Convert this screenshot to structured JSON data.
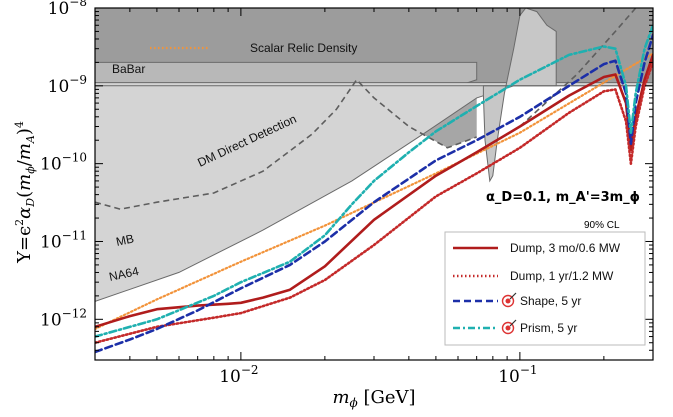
{
  "chart_data": {
    "type": "line",
    "xscale": "log",
    "yscale": "log",
    "xlim": [
      0.003,
      0.3
    ],
    "ylim": [
      3e-13,
      1e-08
    ],
    "xlabel": "m_ϕ [GeV]",
    "ylabel": "Y=ϵ²α_D(m_ϕ/m_A')⁴",
    "x_ticks": [
      {
        "value": 0.01,
        "base": "10",
        "exp": "−2"
      },
      {
        "value": 0.1,
        "base": "10",
        "exp": "−1"
      }
    ],
    "y_ticks": [
      {
        "value": 1e-12,
        "base": "10",
        "exp": "−12"
      },
      {
        "value": 1e-11,
        "base": "10",
        "exp": "−11"
      },
      {
        "value": 1e-10,
        "base": "10",
        "exp": "−10"
      },
      {
        "value": 1e-09,
        "base": "10",
        "exp": "−9"
      },
      {
        "value": 1e-08,
        "base": "10",
        "exp": "−8"
      }
    ],
    "excluded_regions": [
      {
        "label": "BaBar",
        "color": "#9c9c9c"
      },
      {
        "label": "DM Direct Detection",
        "color": "#a6a6a6"
      },
      {
        "label": "MB",
        "color": "#b8b8b8"
      },
      {
        "label": "NA64",
        "color": "#d4d4d4"
      }
    ],
    "series": [
      {
        "name": "Scalar Relic Density",
        "color": "#f2933a",
        "style": "dotted",
        "x": [
          0.003,
          0.005,
          0.01,
          0.02,
          0.05,
          0.1,
          0.2,
          0.3
        ],
        "y": [
          7.5e-13,
          1.8e-12,
          5.5e-12,
          1.6e-11,
          7.5e-11,
          2.5e-10,
          1.1e-09,
          2.6e-09
        ]
      },
      {
        "name": "Dump, 3 mo/0.6 MW",
        "color": "#b01c1c",
        "style": "solid",
        "x": [
          0.003,
          0.004,
          0.005,
          0.007,
          0.009,
          0.01,
          0.012,
          0.015,
          0.02,
          0.03,
          0.05,
          0.07,
          0.1,
          0.15,
          0.2,
          0.22,
          0.24,
          0.25,
          0.26,
          0.28,
          0.3
        ],
        "y": [
          8e-13,
          1.1e-12,
          1.35e-12,
          1.5e-12,
          1.58e-12,
          1.63e-12,
          1.9e-12,
          2.4e-12,
          4.8e-12,
          1.9e-11,
          7e-11,
          1.4e-10,
          3e-10,
          7.5e-10,
          1.3e-09,
          1.4e-09,
          6e-10,
          1.5e-10,
          4e-10,
          1.2e-09,
          2.5e-09
        ]
      },
      {
        "name": "Dump, 1 yr/1.2 MW",
        "color": "#c42a2a",
        "style": "dotted",
        "x": [
          0.003,
          0.005,
          0.008,
          0.01,
          0.015,
          0.02,
          0.03,
          0.05,
          0.07,
          0.1,
          0.15,
          0.2,
          0.22,
          0.24,
          0.25,
          0.26,
          0.28,
          0.3
        ],
        "y": [
          5e-13,
          8e-13,
          1.05e-12,
          1.2e-12,
          1.9e-12,
          3.2e-12,
          9e-12,
          3.8e-11,
          7.5e-11,
          1.6e-10,
          4.5e-10,
          8.5e-10,
          9e-10,
          3.5e-10,
          1e-10,
          3e-10,
          1e-09,
          2e-09
        ]
      },
      {
        "name": "Shape, 5 yr",
        "color": "#1c2fa8",
        "style": "dashed",
        "x": [
          0.003,
          0.004,
          0.005,
          0.007,
          0.01,
          0.015,
          0.02,
          0.03,
          0.05,
          0.07,
          0.1,
          0.15,
          0.2,
          0.22,
          0.24,
          0.25,
          0.26,
          0.28,
          0.3
        ],
        "y": [
          3.8e-13,
          5.5e-13,
          7.5e-13,
          1.3e-12,
          2.5e-12,
          5e-12,
          1e-11,
          3.2e-11,
          1.1e-10,
          2e-10,
          4e-10,
          1e-09,
          1.9e-09,
          2.1e-09,
          8e-10,
          1.8e-10,
          6e-10,
          2e-09,
          4.5e-09
        ]
      },
      {
        "name": "Prism, 5 yr",
        "color": "#1fb0b0",
        "style": "dashdot",
        "x": [
          0.003,
          0.005,
          0.008,
          0.01,
          0.015,
          0.02,
          0.025,
          0.03,
          0.04,
          0.05,
          0.07,
          0.1,
          0.15,
          0.2,
          0.22,
          0.24,
          0.25,
          0.26,
          0.28,
          0.3
        ],
        "y": [
          6e-13,
          1e-12,
          2e-12,
          3e-12,
          5.5e-12,
          1.2e-11,
          3e-11,
          6e-11,
          1.4e-10,
          2.6e-10,
          5.5e-10,
          1.2e-09,
          2.5e-09,
          3.2e-09,
          3e-09,
          1e-09,
          2.5e-10,
          8e-10,
          3e-09,
          6e-09
        ]
      }
    ],
    "annotations": {
      "coupling": "α_D=0.1, m_A'=3m_ϕ",
      "cl": "90% CL"
    }
  }
}
